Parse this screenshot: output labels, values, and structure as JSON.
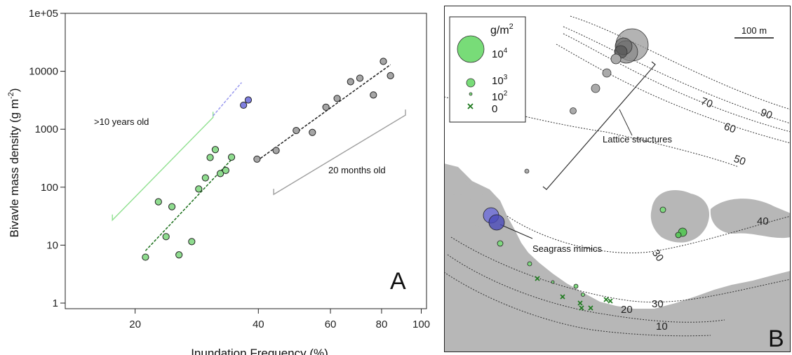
{
  "chart_data": [
    {
      "type": "scatter",
      "panel_label": "A",
      "xlabel": "Inundation Frequency (%)",
      "ylabel": "Bivavle mass density (g m",
      "ylabel_sup": "-2",
      "ylabel_close": ")",
      "x_scale": "log",
      "y_scale": "log",
      "xlim": [
        13.5,
        103
      ],
      "ylim": [
        0.8,
        100000
      ],
      "x_ticks": [
        20,
        40,
        60,
        80,
        100
      ],
      "x_tick_labels": [
        "20",
        "40",
        "60",
        "80",
        "100"
      ],
      "y_ticks": [
        1,
        10,
        100,
        1000,
        10000,
        100000
      ],
      "y_tick_labels": [
        "1",
        "10",
        "100",
        "1000",
        "10000",
        "1e+05"
      ],
      "grid": false,
      "annotations": [
        ">10 years old",
        "20 months old"
      ],
      "series": [
        {
          "group": "green",
          "color": "#8fdc8f",
          "points": [
            [
              21.2,
              6.2
            ],
            [
              22.8,
              56
            ],
            [
              23.8,
              14
            ],
            [
              24.6,
              46
            ],
            [
              25.6,
              6.8
            ],
            [
              27.5,
              11.5
            ],
            [
              28.6,
              93
            ],
            [
              29.7,
              145
            ],
            [
              30.5,
              325
            ],
            [
              31.4,
              445
            ],
            [
              32.3,
              172
            ],
            [
              33.3,
              195
            ],
            [
              34.4,
              330
            ]
          ]
        },
        {
          "group": "blue",
          "color": "#7f7fe0",
          "points": [
            [
              36.8,
              2600
            ],
            [
              37.8,
              3200
            ]
          ]
        },
        {
          "group": "grey",
          "color": "#a6a6a6",
          "points": [
            [
              39.7,
              305
            ],
            [
              44.2,
              430
            ],
            [
              49.5,
              950
            ],
            [
              54.2,
              880
            ],
            [
              58.5,
              2400
            ],
            [
              62.3,
              3400
            ],
            [
              67.2,
              6600
            ],
            [
              70.8,
              7600
            ],
            [
              76.4,
              3900
            ],
            [
              80.8,
              14800
            ],
            [
              84.1,
              8400
            ]
          ]
        }
      ],
      "trend_lines": [
        {
          "color": "#1a6f1a",
          "x": [
            21.2,
            34.4
          ],
          "y": [
            8,
            300
          ]
        },
        {
          "color": "#9b9bf0",
          "x": [
            31.0,
            36.4
          ],
          "y": [
            1700,
            6400
          ]
        },
        {
          "color": "#222222",
          "x": [
            39.7,
            84.1
          ],
          "y": [
            285,
            13000
          ]
        }
      ],
      "brackets": [
        {
          "color": "#8fe08f",
          "x": [
            17.6,
            31.0
          ],
          "y": [
            27,
            1600
          ]
        },
        {
          "color": "#9e9e9e",
          "x": [
            43.6,
            91.5
          ],
          "y": [
            75,
            1750
          ]
        }
      ]
    },
    {
      "type": "scatter",
      "panel_label": "B",
      "legend_title": "g/m",
      "legend_title_sup": "2",
      "legend_entries": [
        {
          "label": "10",
          "sup": "4",
          "marker": "circle",
          "value": 10000
        },
        {
          "label": "10",
          "sup": "3",
          "marker": "circle",
          "value": 1000
        },
        {
          "label": "10",
          "sup": "2",
          "marker": "circle",
          "value": 100
        },
        {
          "label": "0",
          "sup": "",
          "marker": "cross",
          "value": 0
        }
      ],
      "scale_bar": "100 m",
      "annotations": [
        "Lattice structures",
        "Seagrass mimics"
      ],
      "contour_labels": [
        "90",
        "70",
        "60",
        "50",
        "40",
        "30",
        "30",
        "20",
        "10"
      ]
    }
  ]
}
